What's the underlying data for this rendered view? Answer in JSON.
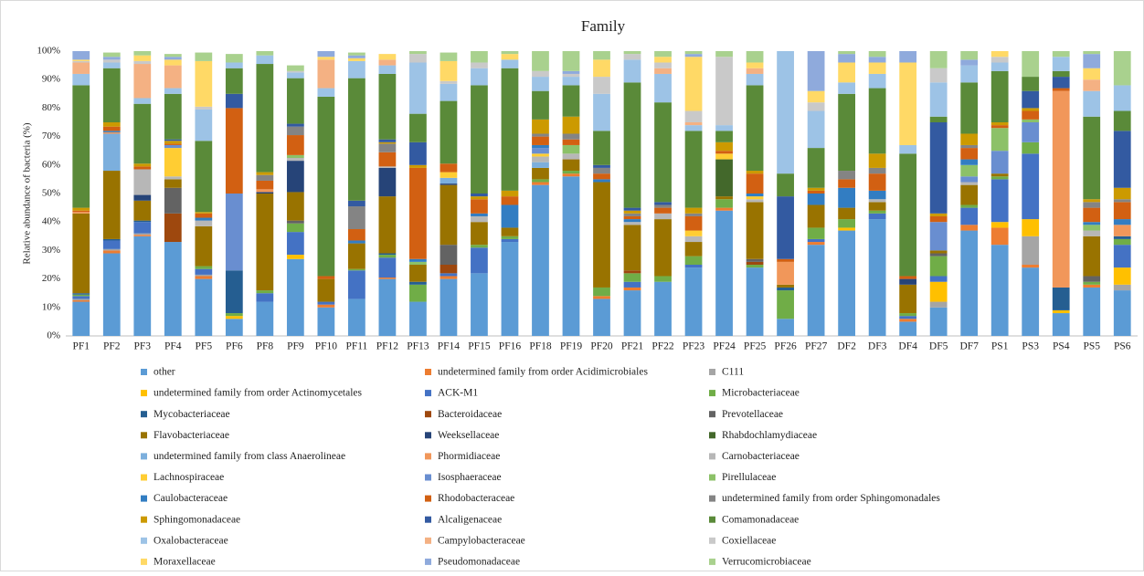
{
  "chart_data": {
    "type": "stacked_bar",
    "title": "Family",
    "y_label": "Relative abundance of bacteria (%)",
    "categories": [
      "PF1",
      "PF2",
      "PF3",
      "PF4",
      "PF5",
      "PF6",
      "PF8",
      "PF9",
      "PF10",
      "PF11",
      "PF12",
      "PF13",
      "PF14",
      "PF15",
      "PF16",
      "PF18",
      "PF19",
      "PF20",
      "PF21",
      "PF22",
      "PF23",
      "PF24",
      "PF25",
      "PF26",
      "PF27",
      "DF2",
      "DF3",
      "DF4",
      "DF5",
      "DF7",
      "PS1",
      "PS3",
      "PS4",
      "PS5",
      "PS6"
    ],
    "ylim": [
      0,
      100
    ],
    "yticks": [
      {
        "value": 0,
        "label": "0%"
      },
      {
        "value": 10,
        "label": "10%"
      },
      {
        "value": 20,
        "label": "20%"
      },
      {
        "value": 30,
        "label": "30%"
      },
      {
        "value": 40,
        "label": "40%"
      },
      {
        "value": 50,
        "label": "50%"
      },
      {
        "value": 60,
        "label": "60%"
      },
      {
        "value": 70,
        "label": "70%"
      },
      {
        "value": 80,
        "label": "80%"
      },
      {
        "value": 90,
        "label": "90%"
      },
      {
        "value": 100,
        "label": "100%"
      }
    ],
    "grid": false,
    "legend": "bottom",
    "series": [
      {
        "name": "other",
        "color": "#5b9bd5",
        "values": [
          12,
          29,
          35,
          33,
          20,
          6,
          12,
          27,
          10,
          13,
          20,
          12,
          20,
          22,
          33,
          53,
          56,
          13,
          16,
          19,
          24,
          44,
          24,
          6,
          32,
          37,
          41,
          5,
          10,
          37,
          32,
          24,
          8,
          17,
          16
        ]
      },
      {
        "name": "undetermined family from order Acidimicrobiales",
        "color": "#ed7d31",
        "values": [
          0.5,
          1,
          0.5,
          0,
          1,
          0,
          0,
          0,
          1,
          0,
          0.5,
          0,
          1,
          0,
          0,
          1,
          1,
          1,
          1,
          0,
          0,
          1,
          0,
          0,
          1,
          0,
          0,
          1,
          0,
          2,
          6,
          1,
          0,
          1,
          0
        ]
      },
      {
        "name": "C111",
        "color": "#a5a5a5",
        "values": [
          0.5,
          0.5,
          0.5,
          0,
          0.5,
          0,
          0,
          0,
          0,
          0,
          0,
          0,
          0,
          0,
          0,
          0,
          0,
          0,
          0,
          0,
          0,
          0,
          0,
          0,
          0,
          0,
          0,
          0,
          2,
          0,
          0,
          10,
          0,
          0,
          2
        ]
      },
      {
        "name": "undetermined family from order Actinomycetales",
        "color": "#ffc000",
        "values": [
          0,
          0,
          0,
          0,
          0,
          1,
          0,
          1.5,
          0,
          0,
          0,
          0,
          0,
          0,
          0,
          0,
          0,
          0,
          0,
          0,
          0,
          0,
          0,
          0,
          0,
          1,
          0,
          0,
          7,
          0,
          2,
          6,
          1,
          0,
          6
        ]
      },
      {
        "name": "ACK-M1",
        "color": "#4472c4",
        "values": [
          1,
          3,
          4,
          0,
          2,
          0,
          3,
          8,
          1,
          10,
          7,
          0,
          1,
          9,
          1,
          0,
          0,
          0,
          2,
          0,
          1,
          0,
          0,
          0,
          1,
          0,
          2,
          1,
          2,
          6,
          15,
          23,
          0,
          0,
          8
        ]
      },
      {
        "name": "Microbacteriaceae",
        "color": "#70ad47",
        "values": [
          0.5,
          0,
          0,
          0,
          1,
          1,
          1,
          3,
          0,
          0.5,
          1,
          6,
          0,
          1,
          1,
          1,
          1,
          3,
          3,
          2,
          3,
          3,
          1,
          10,
          4,
          3,
          1,
          1,
          7,
          1,
          1,
          4,
          0,
          1,
          2
        ]
      },
      {
        "name": "Mycobacteriaceae",
        "color": "#255e91",
        "values": [
          0.5,
          0.5,
          0.5,
          0,
          0,
          15,
          0,
          0,
          0,
          0,
          0.5,
          1,
          0,
          0,
          0,
          0,
          0,
          0,
          0,
          0,
          0,
          0,
          0,
          1,
          0,
          0,
          0,
          0,
          0,
          0,
          0,
          0,
          8,
          0,
          1
        ]
      },
      {
        "name": "Bacteroidaceae",
        "color": "#9e480e",
        "values": [
          0,
          0,
          0,
          10,
          0,
          0,
          0,
          0,
          0,
          0,
          0,
          0,
          3,
          0,
          0,
          0,
          0,
          0,
          1,
          0,
          0,
          0,
          1,
          0,
          0,
          0,
          0,
          0,
          0,
          0,
          0,
          0,
          0,
          0,
          0
        ]
      },
      {
        "name": "Prevotellaceae",
        "color": "#636363",
        "values": [
          0,
          0,
          0,
          9,
          0,
          0,
          0,
          1,
          0,
          0,
          0,
          0,
          7,
          0,
          0,
          0,
          0,
          0,
          0,
          0,
          0,
          0,
          1,
          0,
          0,
          0,
          0,
          0,
          1,
          0,
          0,
          0,
          0,
          2,
          0
        ]
      },
      {
        "name": "Flavobacteriaceae",
        "color": "#997300",
        "values": [
          28,
          24,
          7,
          3,
          14,
          0,
          34,
          10,
          8,
          9,
          20,
          6,
          21,
          8,
          3,
          4,
          4,
          37,
          16,
          20,
          5,
          1,
          20,
          1,
          8,
          4,
          3,
          10,
          1,
          7,
          1,
          0,
          0,
          14,
          0
        ]
      },
      {
        "name": "Weeksellaceae",
        "color": "#264478",
        "values": [
          0,
          0,
          2,
          0,
          0,
          0,
          0.5,
          11,
          0,
          0,
          10,
          0,
          0.5,
          0,
          0,
          0,
          0,
          0,
          0,
          0,
          0,
          0,
          0,
          0,
          0,
          0,
          0,
          2,
          0,
          0,
          0,
          0,
          0,
          0,
          0
        ]
      },
      {
        "name": "Rhabdochlamydiaceae",
        "color": "#43682b",
        "values": [
          0,
          0,
          0,
          0,
          0,
          0,
          0,
          0,
          0,
          0,
          0,
          0,
          0,
          0,
          0,
          0,
          0,
          0,
          0,
          0,
          0,
          13,
          0,
          0,
          0,
          0,
          0,
          0,
          0,
          0,
          0,
          0,
          0,
          0,
          0
        ]
      },
      {
        "name": "undetermined family from class Anaerolineae",
        "color": "#7cafdd",
        "values": [
          0,
          13,
          0,
          0,
          0,
          0,
          0,
          0,
          0,
          0,
          0,
          0,
          2,
          0,
          0,
          2,
          0,
          0,
          0,
          0,
          0,
          0,
          0,
          0,
          0,
          0,
          0,
          0,
          0,
          0,
          0,
          0,
          0,
          0,
          0
        ]
      },
      {
        "name": "Phormidiaceae",
        "color": "#f1975a",
        "values": [
          0.5,
          0.5,
          0,
          0,
          0,
          0,
          1,
          0,
          0,
          0,
          0,
          0,
          0,
          0,
          0,
          0,
          0,
          0,
          0,
          0,
          0,
          0,
          0,
          8,
          0,
          0,
          0,
          0,
          0,
          0,
          0,
          0,
          69,
          0,
          4
        ]
      },
      {
        "name": "Carnobacteriaceae",
        "color": "#b7b7b7",
        "values": [
          0,
          0,
          9,
          1,
          2,
          0,
          0,
          1,
          0,
          0,
          0.5,
          0,
          0,
          2,
          0,
          2,
          2,
          0,
          1,
          2,
          2,
          0,
          1,
          0,
          0,
          0,
          1,
          0,
          0,
          1,
          0,
          0,
          0,
          2,
          0
        ]
      },
      {
        "name": "Lachnospiraceae",
        "color": "#ffcd33",
        "values": [
          0,
          0,
          0,
          10,
          0,
          0,
          0,
          0,
          0,
          0,
          0,
          0,
          2,
          0,
          0,
          1,
          0,
          0,
          0,
          0,
          2,
          2,
          1,
          0,
          0,
          0,
          0,
          0,
          0,
          0,
          0,
          0,
          0,
          0,
          0
        ]
      },
      {
        "name": "Isosphaeraceae",
        "color": "#698ed0",
        "values": [
          0,
          0,
          0,
          1,
          0,
          27,
          0,
          0,
          0,
          0,
          0,
          0,
          0,
          0,
          0,
          2,
          0,
          0,
          0,
          0,
          0,
          0,
          0,
          0,
          0,
          0,
          0,
          0,
          10,
          2,
          8,
          7,
          0,
          0,
          0
        ]
      },
      {
        "name": "Pirellulaceae",
        "color": "#8cc168",
        "values": [
          0,
          0,
          0,
          0,
          0,
          0,
          0,
          1,
          0,
          0,
          0,
          1,
          0,
          0,
          0,
          0,
          3,
          0,
          0,
          0,
          0,
          0,
          0,
          0,
          0,
          0,
          0,
          0,
          0,
          4,
          8,
          1,
          0,
          2,
          0
        ]
      },
      {
        "name": "Caulobacteraceae",
        "color": "#327dc2",
        "values": [
          0,
          0.5,
          0,
          0,
          1,
          0,
          0,
          0,
          0,
          1,
          0,
          1,
          0,
          1,
          8,
          1,
          0,
          1,
          1,
          0,
          0,
          0,
          1,
          0,
          4,
          7,
          3,
          0,
          0,
          2,
          0,
          0,
          0,
          1,
          2
        ]
      },
      {
        "name": "Rhodobacteraceae",
        "color": "#d26012",
        "values": [
          0.5,
          1.5,
          1,
          0.5,
          1.5,
          30,
          3,
          7,
          1,
          4,
          5,
          32,
          3,
          5,
          3,
          3,
          2,
          2,
          1,
          2,
          5,
          1,
          7,
          1,
          1,
          3,
          6,
          1,
          2,
          4,
          1,
          3,
          1,
          5,
          6
        ]
      },
      {
        "name": "undetermined family from order Sphingomonadales",
        "color": "#848484",
        "values": [
          0,
          0,
          0,
          0,
          0,
          0,
          2,
          3,
          0,
          8,
          3,
          0,
          0,
          0,
          0,
          1,
          2,
          2,
          1,
          1,
          1,
          0,
          0,
          0,
          0,
          3,
          2,
          0,
          0,
          1,
          0,
          0,
          0,
          2,
          1
        ]
      },
      {
        "name": "Sphingomonadaceae",
        "color": "#cc9a00",
        "values": [
          1,
          1.5,
          1,
          1,
          0.5,
          0,
          1,
          0,
          0,
          0,
          0.5,
          1,
          0,
          1,
          2,
          5,
          6,
          0,
          1,
          0,
          2,
          3,
          1,
          0,
          1,
          0,
          5,
          0,
          1,
          4,
          1,
          1,
          0,
          1,
          4
        ]
      },
      {
        "name": "Alcaligenaceae",
        "color": "#335aa1",
        "values": [
          0,
          0,
          0,
          0.5,
          0,
          5,
          0,
          1,
          0,
          2,
          1,
          8,
          0,
          1,
          0,
          0,
          0,
          1,
          1,
          1,
          0,
          0,
          0,
          22,
          0,
          0,
          0,
          0,
          32,
          0,
          0,
          6,
          4,
          0,
          20
        ]
      },
      {
        "name": "Comamonadaceae",
        "color": "#5a8a39",
        "values": [
          43,
          19,
          21,
          16,
          25,
          9,
          38,
          16,
          63,
          43,
          23,
          10,
          22,
          38,
          43,
          10,
          11,
          12,
          44,
          35,
          27,
          4,
          30,
          8,
          14,
          27,
          23,
          43,
          2,
          18,
          18,
          5,
          2,
          29,
          7
        ]
      },
      {
        "name": "Oxalobacteraceae",
        "color": "#9dc3e6",
        "values": [
          4,
          2,
          2,
          2,
          11,
          2,
          3,
          2,
          3,
          6,
          3,
          18,
          6,
          6,
          3,
          5,
          3,
          13,
          8,
          10,
          2,
          2,
          4,
          43,
          13,
          4,
          5,
          3,
          12,
          6,
          3,
          0,
          5,
          9,
          9
        ]
      },
      {
        "name": "Campylobacteraceae",
        "color": "#f4b183",
        "values": [
          4,
          0,
          12,
          8,
          0,
          0,
          0,
          0,
          10,
          0,
          2,
          0,
          0,
          0,
          0,
          0,
          0,
          0,
          0,
          2,
          1,
          0,
          2,
          0,
          0,
          0,
          0,
          0,
          0,
          0,
          0,
          0,
          0,
          4,
          0
        ]
      },
      {
        "name": "Coxiellaceae",
        "color": "#c9c9c9",
        "values": [
          0.5,
          1,
          1,
          0,
          1,
          0,
          0,
          0.5,
          0,
          0,
          0,
          3,
          1,
          2,
          0,
          2,
          1,
          6,
          2,
          2,
          4,
          24,
          0,
          0,
          3,
          0,
          0,
          0,
          5,
          0,
          2,
          0,
          0,
          0,
          0
        ]
      },
      {
        "name": "Moraxellaceae",
        "color": "#ffd966",
        "values": [
          0.5,
          0,
          2,
          2,
          16,
          0,
          0,
          0,
          1,
          1,
          2,
          0,
          7,
          0,
          2,
          0,
          0,
          6,
          0,
          2,
          19,
          0,
          2,
          0,
          4,
          7,
          4,
          29,
          0,
          0,
          2,
          0,
          0,
          4,
          0
        ]
      },
      {
        "name": "Pseudomonadaceae",
        "color": "#8faadc",
        "values": [
          3,
          1,
          0,
          1,
          0,
          0,
          0,
          0,
          2,
          1,
          0,
          0,
          0,
          0,
          0,
          0,
          1,
          0,
          0,
          0,
          1,
          0,
          0,
          0,
          14,
          3,
          2,
          4,
          0,
          2,
          0,
          0,
          0,
          5,
          0
        ]
      },
      {
        "name": "Verrucomicrobiaceae",
        "color": "#a9d18e",
        "values": [
          0,
          1.5,
          1.5,
          1,
          3,
          3,
          1.5,
          2,
          0,
          1,
          0,
          1,
          3,
          4,
          1,
          7,
          7,
          3,
          1,
          2,
          1,
          2,
          4,
          0,
          0,
          1,
          2,
          0,
          6,
          3,
          0,
          9,
          2,
          1,
          12
        ]
      }
    ]
  }
}
